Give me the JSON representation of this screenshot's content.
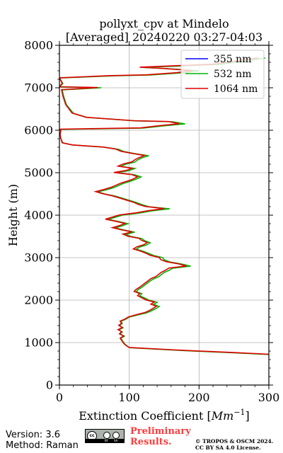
{
  "title": {
    "line1": "pollyxt_cpv at Mindelo",
    "line2": "[Averaged] 20240220 03:27-04:03"
  },
  "footer": {
    "version": "Version: 3.6",
    "method": "Method: Raman",
    "preliminary_line1": "Preliminary",
    "preliminary_line2": "Results.",
    "copyright_line1": "© TROPOS & OSCM 2024.",
    "copyright_line2": "CC BY SA 4.0 License.",
    "license_badge": "cc-by-sa-icon",
    "license_badge_labels": [
      "BY",
      "SA"
    ]
  },
  "chart_data": {
    "type": "line",
    "title": "pollyxt_cpv at Mindelo [Averaged] 20240220 03:27-04:03",
    "xlabel": "Extinction Coefficient [Mm⁻¹]",
    "xlabel_base": "Extinction Coefficient [",
    "xlabel_unit": "Mm",
    "xlabel_exp": "−1",
    "xlabel_close": "]",
    "ylabel": "Height (m)",
    "xlim": [
      0,
      300
    ],
    "ylim": [
      0,
      8000
    ],
    "xticks": [
      "0",
      "100",
      "200",
      "300"
    ],
    "yticks": [
      "0",
      "1000",
      "2000",
      "3000",
      "4000",
      "5000",
      "6000",
      "7000",
      "8000"
    ],
    "grid": true,
    "legend_position": "top-right",
    "series": [
      {
        "name": "355 nm",
        "color": "#0000ff",
        "points": []
      },
      {
        "name": "532 nm",
        "color": "#00b400",
        "points": [
          [
            300,
            720
          ],
          [
            250,
            760
          ],
          [
            180,
            810
          ],
          [
            100,
            880
          ],
          [
            97,
            920
          ],
          [
            94,
            960
          ],
          [
            92,
            1000
          ],
          [
            90,
            1050
          ],
          [
            88,
            1100
          ],
          [
            93,
            1150
          ],
          [
            87,
            1200
          ],
          [
            90,
            1250
          ],
          [
            85,
            1300
          ],
          [
            91,
            1350
          ],
          [
            86,
            1400
          ],
          [
            90,
            1450
          ],
          [
            88,
            1500
          ],
          [
            95,
            1550
          ],
          [
            100,
            1600
          ],
          [
            112,
            1650
          ],
          [
            125,
            1700
          ],
          [
            132,
            1750
          ],
          [
            138,
            1800
          ],
          [
            143,
            1850
          ],
          [
            135,
            1900
          ],
          [
            140,
            1950
          ],
          [
            128,
            2000
          ],
          [
            122,
            2050
          ],
          [
            115,
            2100
          ],
          [
            118,
            2150
          ],
          [
            110,
            2200
          ],
          [
            113,
            2250
          ],
          [
            118,
            2300
          ],
          [
            122,
            2350
          ],
          [
            126,
            2400
          ],
          [
            130,
            2450
          ],
          [
            135,
            2500
          ],
          [
            142,
            2550
          ],
          [
            146,
            2600
          ],
          [
            150,
            2650
          ],
          [
            157,
            2700
          ],
          [
            162,
            2750
          ],
          [
            188,
            2800
          ],
          [
            175,
            2850
          ],
          [
            158,
            2900
          ],
          [
            150,
            2950
          ],
          [
            148,
            3000
          ],
          [
            135,
            3050
          ],
          [
            128,
            3100
          ],
          [
            120,
            3150
          ],
          [
            110,
            3200
          ],
          [
            115,
            3250
          ],
          [
            125,
            3300
          ],
          [
            130,
            3350
          ],
          [
            122,
            3400
          ],
          [
            118,
            3450
          ],
          [
            102,
            3500
          ],
          [
            95,
            3550
          ],
          [
            108,
            3600
          ],
          [
            93,
            3650
          ],
          [
            80,
            3700
          ],
          [
            90,
            3750
          ],
          [
            98,
            3800
          ],
          [
            85,
            3850
          ],
          [
            70,
            3900
          ],
          [
            80,
            3950
          ],
          [
            90,
            4000
          ],
          [
            115,
            4050
          ],
          [
            132,
            4100
          ],
          [
            158,
            4150
          ],
          [
            128,
            4200
          ],
          [
            118,
            4250
          ],
          [
            110,
            4300
          ],
          [
            100,
            4350
          ],
          [
            90,
            4400
          ],
          [
            80,
            4450
          ],
          [
            65,
            4500
          ],
          [
            55,
            4550
          ],
          [
            68,
            4600
          ],
          [
            78,
            4650
          ],
          [
            85,
            4700
          ],
          [
            92,
            4750
          ],
          [
            102,
            4800
          ],
          [
            110,
            4850
          ],
          [
            117,
            4900
          ],
          [
            108,
            4950
          ],
          [
            82,
            5000
          ],
          [
            100,
            5050
          ],
          [
            108,
            5100
          ],
          [
            88,
            5150
          ],
          [
            95,
            5200
          ],
          [
            108,
            5250
          ],
          [
            112,
            5300
          ],
          [
            118,
            5350
          ],
          [
            128,
            5400
          ],
          [
            108,
            5450
          ],
          [
            92,
            5500
          ],
          [
            85,
            5550
          ],
          [
            65,
            5600
          ],
          [
            20,
            5650
          ],
          [
            5,
            5700
          ],
          [
            2,
            5800
          ],
          [
            1,
            5900
          ],
          [
            2,
            5980
          ],
          [
            0,
            6020
          ],
          [
            120,
            6050
          ],
          [
            148,
            6100
          ],
          [
            180,
            6150
          ],
          [
            162,
            6200
          ],
          [
            110,
            6220
          ],
          [
            40,
            6300
          ],
          [
            20,
            6400
          ],
          [
            10,
            6600
          ],
          [
            6,
            6800
          ],
          [
            4,
            6950
          ],
          [
            60,
            7000
          ],
          [
            0,
            7020
          ],
          [
            5,
            7100
          ],
          [
            0,
            7230
          ],
          [
            75,
            7280
          ],
          [
            130,
            7300
          ],
          [
            175,
            7350
          ],
          [
            200,
            7400
          ],
          [
            155,
            7450
          ],
          [
            120,
            7480
          ],
          [
            230,
            7550
          ],
          [
            295,
            7700
          ]
        ]
      },
      {
        "name": "1064 nm",
        "color": "#e00000",
        "points": [
          [
            300,
            725
          ],
          [
            250,
            765
          ],
          [
            180,
            815
          ],
          [
            100,
            885
          ],
          [
            96,
            925
          ],
          [
            93,
            965
          ],
          [
            91,
            1005
          ],
          [
            89,
            1055
          ],
          [
            87,
            1105
          ],
          [
            92,
            1155
          ],
          [
            86,
            1205
          ],
          [
            89,
            1255
          ],
          [
            84,
            1305
          ],
          [
            90,
            1355
          ],
          [
            85,
            1405
          ],
          [
            89,
            1455
          ],
          [
            87,
            1505
          ],
          [
            94,
            1555
          ],
          [
            99,
            1605
          ],
          [
            110,
            1655
          ],
          [
            122,
            1705
          ],
          [
            129,
            1755
          ],
          [
            134,
            1805
          ],
          [
            139,
            1855
          ],
          [
            131,
            1905
          ],
          [
            136,
            1955
          ],
          [
            124,
            2005
          ],
          [
            118,
            2055
          ],
          [
            112,
            2105
          ],
          [
            115,
            2155
          ],
          [
            107,
            2205
          ],
          [
            110,
            2255
          ],
          [
            115,
            2305
          ],
          [
            119,
            2355
          ],
          [
            123,
            2405
          ],
          [
            127,
            2455
          ],
          [
            131,
            2505
          ],
          [
            138,
            2555
          ],
          [
            142,
            2605
          ],
          [
            146,
            2655
          ],
          [
            152,
            2705
          ],
          [
            157,
            2755
          ],
          [
            182,
            2805
          ],
          [
            170,
            2855
          ],
          [
            153,
            2905
          ],
          [
            145,
            2955
          ],
          [
            143,
            3005
          ],
          [
            130,
            3055
          ],
          [
            124,
            3105
          ],
          [
            116,
            3155
          ],
          [
            106,
            3205
          ],
          [
            111,
            3255
          ],
          [
            121,
            3305
          ],
          [
            126,
            3355
          ],
          [
            118,
            3405
          ],
          [
            114,
            3455
          ],
          [
            98,
            3505
          ],
          [
            91,
            3555
          ],
          [
            104,
            3605
          ],
          [
            89,
            3655
          ],
          [
            76,
            3705
          ],
          [
            86,
            3755
          ],
          [
            94,
            3805
          ],
          [
            81,
            3855
          ],
          [
            66,
            3905
          ],
          [
            76,
            3955
          ],
          [
            86,
            4005
          ],
          [
            110,
            4055
          ],
          [
            127,
            4105
          ],
          [
            150,
            4155
          ],
          [
            123,
            4205
          ],
          [
            113,
            4255
          ],
          [
            106,
            4305
          ],
          [
            96,
            4355
          ],
          [
            86,
            4405
          ],
          [
            76,
            4455
          ],
          [
            62,
            4505
          ],
          [
            52,
            4555
          ],
          [
            64,
            4605
          ],
          [
            74,
            4655
          ],
          [
            81,
            4705
          ],
          [
            88,
            4755
          ],
          [
            98,
            4805
          ],
          [
            106,
            4855
          ],
          [
            112,
            4905
          ],
          [
            104,
            4955
          ],
          [
            78,
            5005
          ],
          [
            96,
            5055
          ],
          [
            104,
            5105
          ],
          [
            84,
            5155
          ],
          [
            91,
            5205
          ],
          [
            104,
            5255
          ],
          [
            108,
            5305
          ],
          [
            114,
            5355
          ],
          [
            122,
            5405
          ],
          [
            104,
            5455
          ],
          [
            88,
            5505
          ],
          [
            81,
            5555
          ],
          [
            62,
            5605
          ],
          [
            18,
            5655
          ],
          [
            4,
            5705
          ],
          [
            2,
            5805
          ],
          [
            1,
            5905
          ],
          [
            2,
            5985
          ],
          [
            0,
            6025
          ],
          [
            116,
            6055
          ],
          [
            142,
            6105
          ],
          [
            172,
            6155
          ],
          [
            156,
            6205
          ],
          [
            106,
            6225
          ],
          [
            38,
            6305
          ],
          [
            18,
            6405
          ],
          [
            9,
            6605
          ],
          [
            5,
            6805
          ],
          [
            3,
            6955
          ],
          [
            55,
            7005
          ],
          [
            0,
            7025
          ],
          [
            4,
            7105
          ],
          [
            0,
            7235
          ],
          [
            70,
            7285
          ],
          [
            125,
            7305
          ],
          [
            168,
            7355
          ],
          [
            190,
            7405
          ],
          [
            148,
            7455
          ],
          [
            115,
            7485
          ],
          [
            220,
            7555
          ],
          [
            285,
            7705
          ]
        ]
      }
    ]
  }
}
